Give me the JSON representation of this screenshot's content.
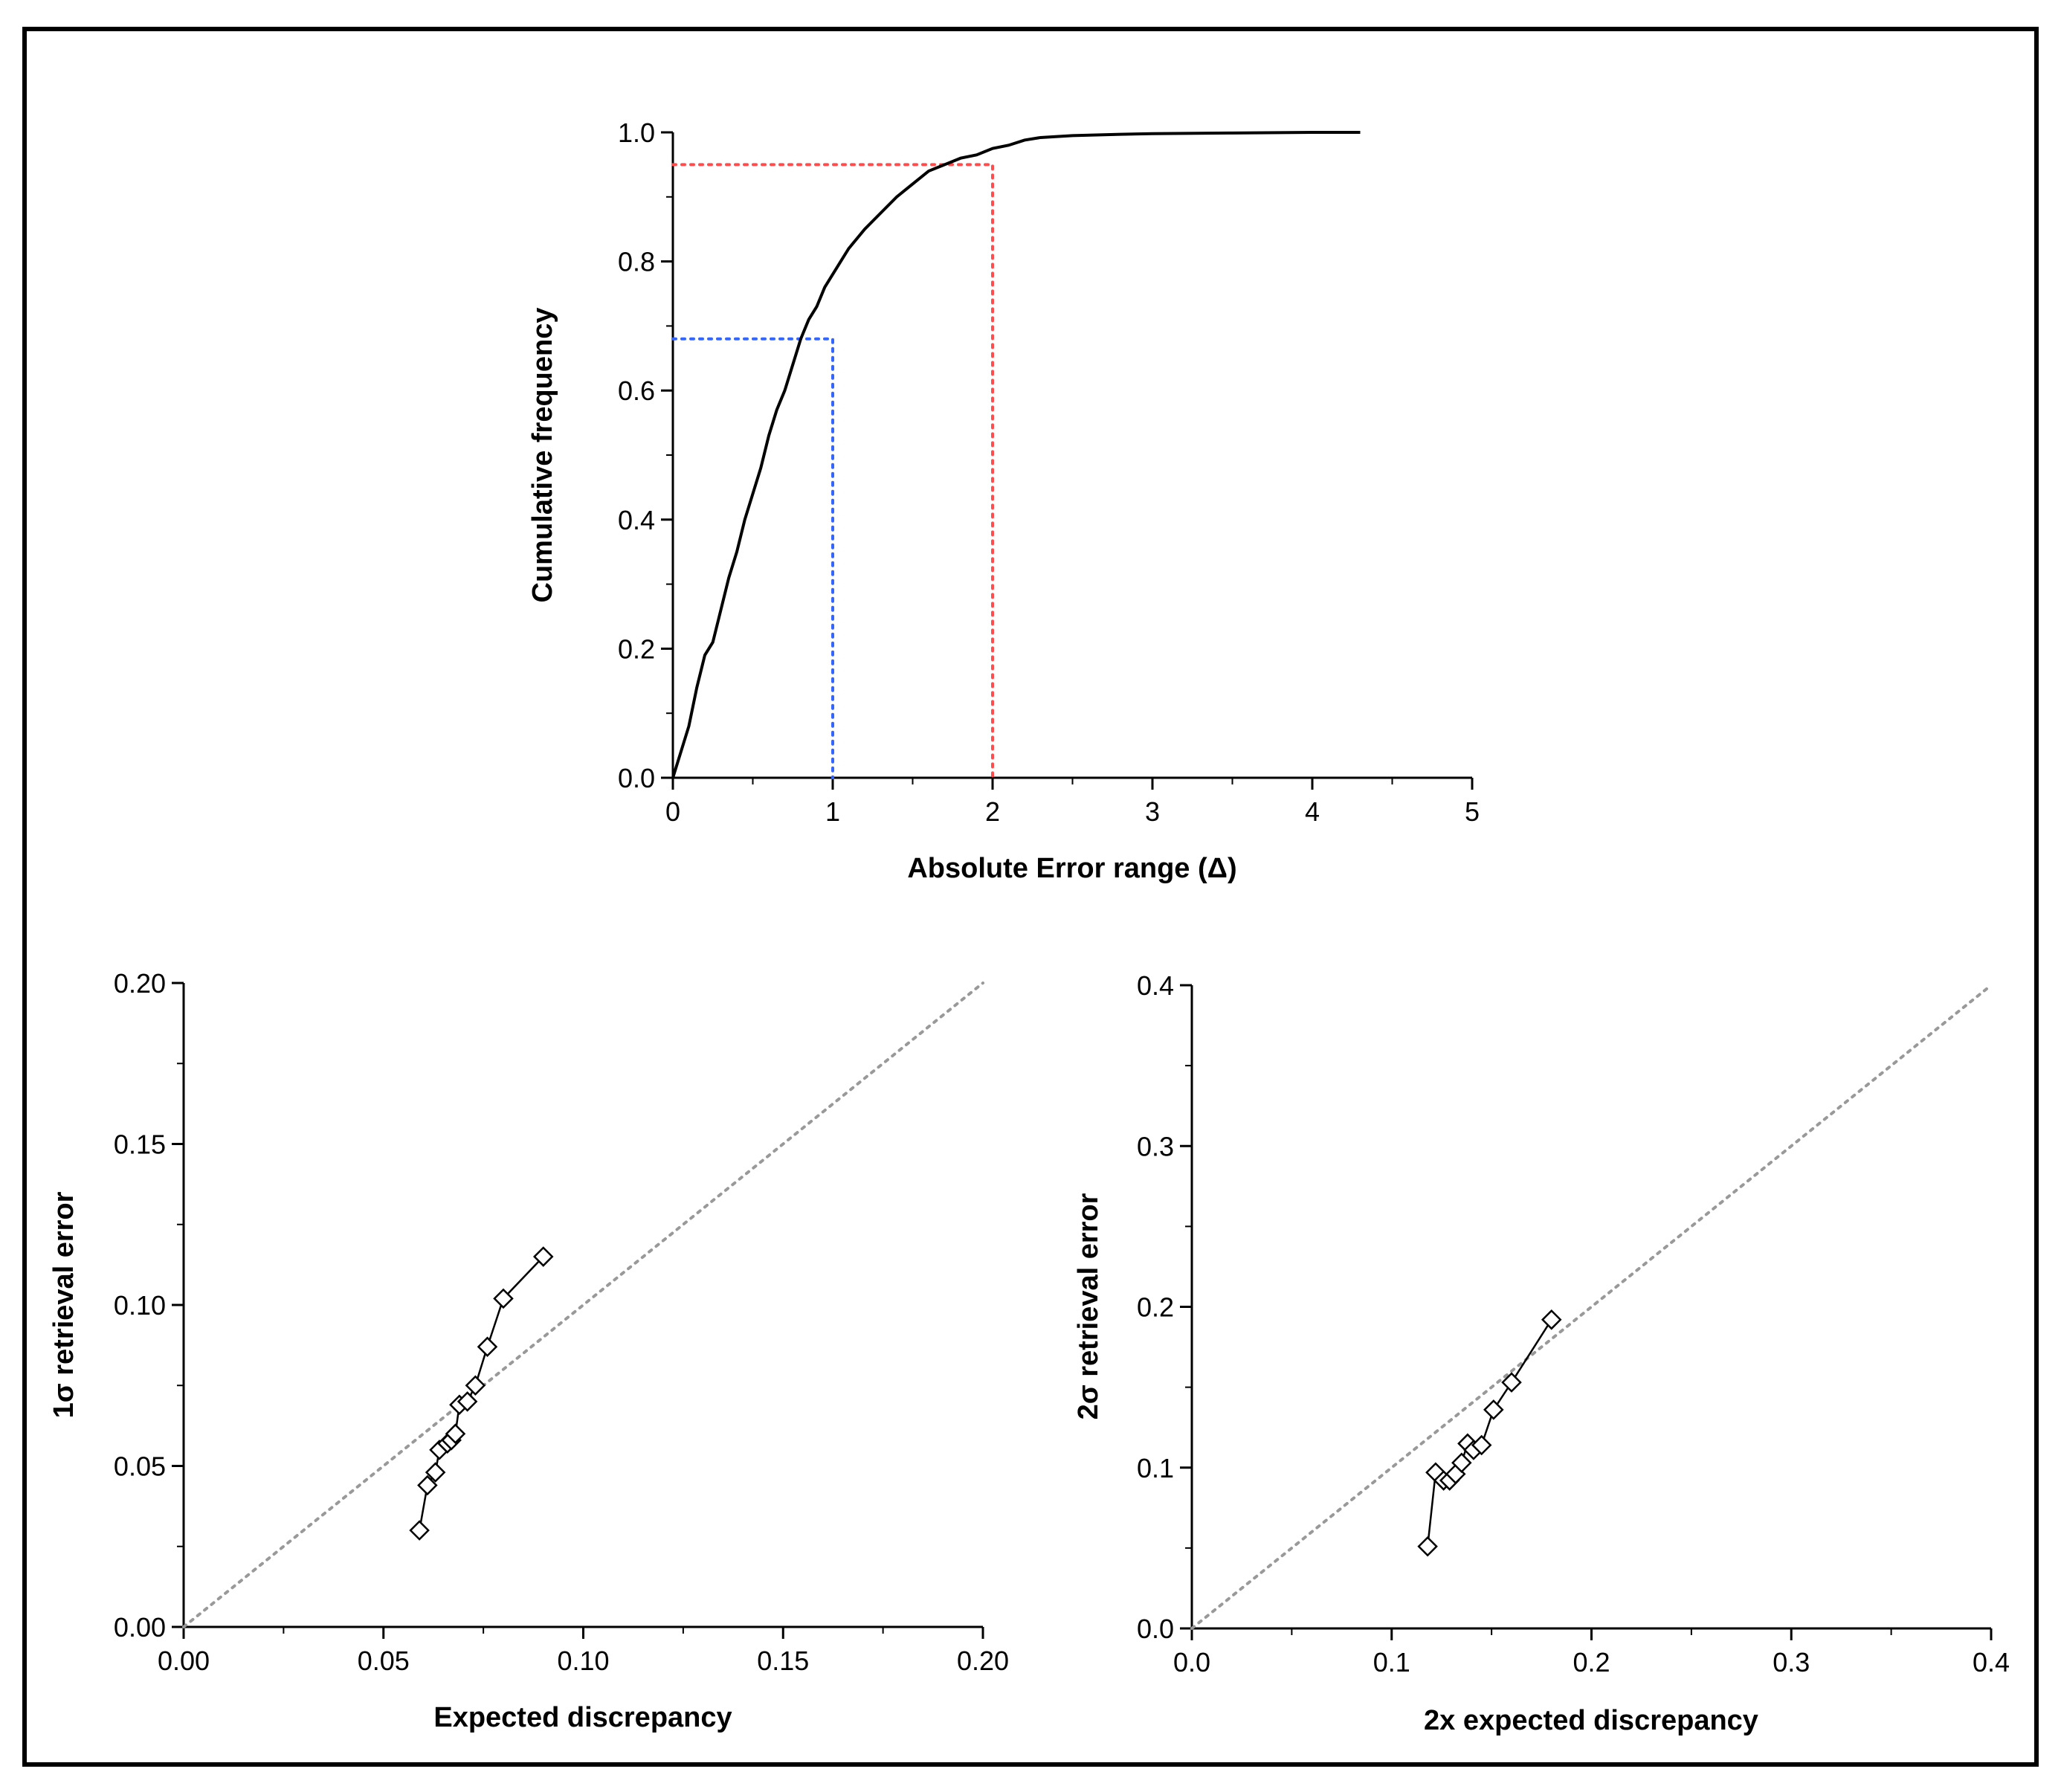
{
  "chart_data": [
    {
      "type": "line",
      "xlabel": "Absolute Error range (Δ)",
      "ylabel": "Cumulative frequency",
      "xlim": [
        0,
        5
      ],
      "ylim": [
        0,
        1.0
      ],
      "xticks": [
        "0",
        "1",
        "2",
        "3",
        "4",
        "5"
      ],
      "yticks": [
        "0.0",
        "0.2",
        "0.4",
        "0.6",
        "0.8",
        "1.0"
      ],
      "grid": false,
      "series": [
        {
          "color": "#000000",
          "style": "solid",
          "x": [
            0,
            0.05,
            0.1,
            0.15,
            0.2,
            0.25,
            0.3,
            0.35,
            0.4,
            0.45,
            0.5,
            0.55,
            0.6,
            0.65,
            0.7,
            0.75,
            0.8,
            0.85,
            0.9,
            0.95,
            1.0,
            1.05,
            1.1,
            1.15,
            1.2,
            1.3,
            1.4,
            1.5,
            1.6,
            1.7,
            1.8,
            1.9,
            2.0,
            2.1,
            2.2,
            2.3,
            2.5,
            2.8,
            3.0,
            3.5,
            4.0,
            4.3
          ],
          "y": [
            0.0,
            0.04,
            0.08,
            0.14,
            0.19,
            0.21,
            0.26,
            0.31,
            0.35,
            0.4,
            0.44,
            0.48,
            0.53,
            0.57,
            0.6,
            0.64,
            0.68,
            0.71,
            0.73,
            0.76,
            0.78,
            0.8,
            0.82,
            0.835,
            0.85,
            0.875,
            0.9,
            0.92,
            0.94,
            0.95,
            0.96,
            0.965,
            0.975,
            0.98,
            0.988,
            0.992,
            0.995,
            0.997,
            0.998,
            0.999,
            1.0,
            1.0
          ]
        }
      ],
      "reference_lines": [
        {
          "color": "#ff4d4d",
          "style": "dotted",
          "x": [
            0,
            2,
            2
          ],
          "y": [
            0.95,
            0.95,
            0
          ]
        },
        {
          "color": "#3366ff",
          "style": "dotted",
          "x": [
            0,
            1,
            1
          ],
          "y": [
            0.68,
            0.68,
            0
          ]
        }
      ]
    },
    {
      "type": "scatter",
      "xlabel": "Expected discrepancy",
      "ylabel": "1σ  retrieval error",
      "xlim": [
        0,
        0.2
      ],
      "ylim": [
        0,
        0.2
      ],
      "xticks": [
        "0.00",
        "0.05",
        "0.10",
        "0.15",
        "0.20"
      ],
      "yticks": [
        "0.00",
        "0.05",
        "0.10",
        "0.15",
        "0.20"
      ],
      "grid": false,
      "marker": "open-diamond",
      "connected": true,
      "series": [
        {
          "x": [
            0.059,
            0.061,
            0.063,
            0.064,
            0.066,
            0.067,
            0.068,
            0.069,
            0.071,
            0.073,
            0.076,
            0.08,
            0.09
          ],
          "y": [
            0.03,
            0.044,
            0.048,
            0.055,
            0.057,
            0.058,
            0.06,
            0.069,
            0.07,
            0.075,
            0.087,
            0.102,
            0.115
          ]
        }
      ],
      "reference_line": {
        "color": "#999999",
        "style": "dotted",
        "x": [
          0,
          0.2
        ],
        "y": [
          0,
          0.2
        ]
      }
    },
    {
      "type": "scatter",
      "xlabel": "2x expected discrepancy",
      "ylabel": "2σ  retrieval error",
      "xlim": [
        0,
        0.4
      ],
      "ylim": [
        0,
        0.4
      ],
      "xticks": [
        "0.0",
        "0.1",
        "0.2",
        "0.3",
        "0.4"
      ],
      "yticks": [
        "0.0",
        "0.1",
        "0.2",
        "0.3",
        "0.4"
      ],
      "grid": false,
      "marker": "open-diamond",
      "connected": true,
      "series": [
        {
          "x": [
            0.118,
            0.122,
            0.126,
            0.129,
            0.132,
            0.135,
            0.138,
            0.141,
            0.145,
            0.151,
            0.16,
            0.18
          ],
          "y": [
            0.051,
            0.097,
            0.092,
            0.092,
            0.096,
            0.103,
            0.115,
            0.111,
            0.114,
            0.136,
            0.153,
            0.192
          ]
        }
      ],
      "reference_line": {
        "color": "#999999",
        "style": "dotted",
        "x": [
          0,
          0.4
        ],
        "y": [
          0,
          0.4
        ]
      }
    }
  ]
}
